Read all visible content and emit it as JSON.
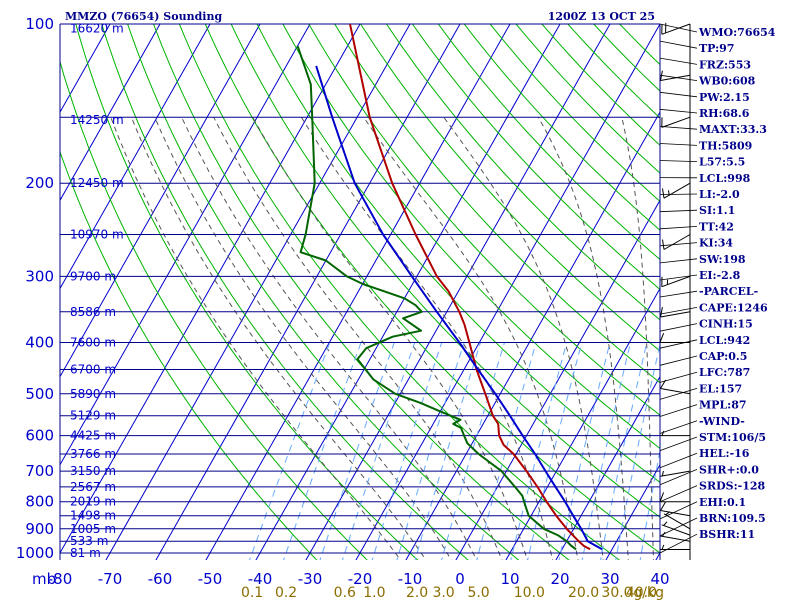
{
  "header": {
    "station": "MMZO (76654) Sounding",
    "time": "1200Z 13 OCT 25"
  },
  "chart_data": {
    "type": "line",
    "diagram": "skew-T log-P",
    "pressure_range_hpa": [
      1000,
      100
    ],
    "temperature_range_c": [
      -80,
      40
    ],
    "skew_c_per_decade": 60,
    "pressure_ticks": [
      "100",
      "200",
      "300",
      "400",
      "500",
      "600",
      "700",
      "800",
      "900",
      "1000"
    ],
    "pressure_unit": "mb",
    "temperature_ticks": [
      "-80",
      "-70",
      "-60",
      "-50",
      "-40",
      "-30",
      "-20",
      "-10",
      "0",
      "10",
      "20",
      "30",
      "40"
    ],
    "mixing_ratio_ticks": [
      "0.1",
      "0.2",
      "0.6",
      "1.0",
      "2.0",
      "3.0",
      "5.0",
      "10.0",
      "20.0",
      "30.0",
      "40.0"
    ],
    "mixing_ratio_unit": "g/kg",
    "height_labels": [
      {
        "p": 102,
        "label": "16620 m"
      },
      {
        "p": 152,
        "label": "14250 m"
      },
      {
        "p": 200,
        "label": "12450 m"
      },
      {
        "p": 250,
        "label": "10970 m"
      },
      {
        "p": 300,
        "label": "9700 m"
      },
      {
        "p": 350,
        "label": "8586 m"
      },
      {
        "p": 400,
        "label": "7600 m"
      },
      {
        "p": 450,
        "label": "6700 m"
      },
      {
        "p": 500,
        "label": "5890 m"
      },
      {
        "p": 550,
        "label": "5129 m"
      },
      {
        "p": 600,
        "label": "4425 m"
      },
      {
        "p": 650,
        "label": "3766 m"
      },
      {
        "p": 700,
        "label": "3150 m"
      },
      {
        "p": 750,
        "label": "2567 m"
      },
      {
        "p": 800,
        "label": "2019 m"
      },
      {
        "p": 850,
        "label": "1498 m"
      },
      {
        "p": 900,
        "label": "1005 m"
      },
      {
        "p": 950,
        "label": "533 m"
      },
      {
        "p": 1000,
        "label": "81 m"
      }
    ],
    "series": [
      {
        "color": "#b00000",
        "points": [
          [
            984,
            25.6
          ],
          [
            970,
            24.0
          ],
          [
            950,
            22.4
          ],
          [
            925,
            20.5
          ],
          [
            900,
            18.6
          ],
          [
            850,
            15.0
          ],
          [
            800,
            11.5
          ],
          [
            750,
            8.0
          ],
          [
            700,
            4.0
          ],
          [
            650,
            -0.5
          ],
          [
            625,
            -3.5
          ],
          [
            600,
            -5.5
          ],
          [
            570,
            -7.0
          ],
          [
            550,
            -9.0
          ],
          [
            500,
            -13.0
          ],
          [
            450,
            -17.5
          ],
          [
            400,
            -22.0
          ],
          [
            370,
            -25.0
          ],
          [
            350,
            -27.5
          ],
          [
            320,
            -32.0
          ],
          [
            300,
            -36.0
          ],
          [
            250,
            -45.0
          ],
          [
            200,
            -55.5
          ],
          [
            150,
            -67.5
          ],
          [
            100,
            -82.0
          ]
        ]
      },
      {
        "color": "#006400",
        "points": [
          [
            984,
            22.8
          ],
          [
            970,
            21.5
          ],
          [
            950,
            20.0
          ],
          [
            925,
            17.5
          ],
          [
            900,
            14.0
          ],
          [
            850,
            9.5
          ],
          [
            810,
            7.5
          ],
          [
            800,
            7.0
          ],
          [
            780,
            6.0
          ],
          [
            750,
            3.5
          ],
          [
            700,
            -1.0
          ],
          [
            650,
            -7.5
          ],
          [
            620,
            -11.0
          ],
          [
            600,
            -12.5
          ],
          [
            580,
            -14.0
          ],
          [
            570,
            -16.0
          ],
          [
            560,
            -15.0
          ],
          [
            540,
            -20.0
          ],
          [
            520,
            -25.0
          ],
          [
            500,
            -31.0
          ],
          [
            470,
            -37.0
          ],
          [
            430,
            -42.5
          ],
          [
            410,
            -42.0
          ],
          [
            390,
            -38.0
          ],
          [
            380,
            -33.0
          ],
          [
            360,
            -38.0
          ],
          [
            350,
            -35.0
          ],
          [
            340,
            -37.0
          ],
          [
            330,
            -40.0
          ],
          [
            310,
            -50.0
          ],
          [
            300,
            -54.0
          ],
          [
            280,
            -60.0
          ],
          [
            270,
            -66.0
          ],
          [
            250,
            -67.0
          ],
          [
            200,
            -71.0
          ],
          [
            150,
            -79.0
          ],
          [
            130,
            -83.0
          ],
          [
            110,
            -90.0
          ]
        ]
      },
      {
        "color": "#0000cd",
        "points": [
          [
            984,
            28.0
          ],
          [
            950,
            24.2
          ],
          [
            900,
            21.5
          ],
          [
            850,
            18.4
          ],
          [
            800,
            15.2
          ],
          [
            750,
            11.6
          ],
          [
            700,
            7.8
          ],
          [
            650,
            3.8
          ],
          [
            600,
            -0.8
          ],
          [
            550,
            -5.6
          ],
          [
            500,
            -11.0
          ],
          [
            450,
            -17.2
          ],
          [
            400,
            -24.0
          ],
          [
            350,
            -32.0
          ],
          [
            300,
            -41.0
          ],
          [
            250,
            -51.5
          ],
          [
            200,
            -63.0
          ],
          [
            150,
            -75.0
          ],
          [
            120,
            -84.0
          ]
        ]
      }
    ],
    "wind_barbs": [
      {
        "p": 985,
        "dir": 90,
        "spd": 5
      },
      {
        "p": 950,
        "dir": 100,
        "spd": 5
      },
      {
        "p": 925,
        "dir": 110,
        "spd": 5
      },
      {
        "p": 900,
        "dir": 120,
        "spd": 5
      },
      {
        "p": 850,
        "dir": 100,
        "spd": 10
      },
      {
        "p": 800,
        "dir": 90,
        "spd": 10
      },
      {
        "p": 700,
        "dir": 80,
        "spd": 5
      },
      {
        "p": 600,
        "dir": 90,
        "spd": 5
      },
      {
        "p": 500,
        "dir": 100,
        "spd": 10
      },
      {
        "p": 400,
        "dir": 90,
        "spd": 10
      },
      {
        "p": 350,
        "dir": 80,
        "spd": 10
      },
      {
        "p": 300,
        "dir": 70,
        "spd": 15
      },
      {
        "p": 250,
        "dir": 60,
        "spd": 10
      },
      {
        "p": 200,
        "dir": 60,
        "spd": 15
      },
      {
        "p": 150,
        "dir": 70,
        "spd": 10
      },
      {
        "p": 125,
        "dir": 80,
        "spd": 10
      },
      {
        "p": 100,
        "dir": 70,
        "spd": 20
      }
    ]
  },
  "indices": [
    "WMO:76654",
    "TP:97",
    "FRZ:553",
    "WB0:608",
    "PW:2.15",
    "RH:68.6",
    "MAXT:33.3",
    "TH:5809",
    "L57:5.5",
    "LCL:998",
    "LI:-2.0",
    "SI:1.1",
    "TT:42",
    "KI:34",
    "SW:198",
    "EI:-2.8",
    "-PARCEL-",
    "CAPE:1246",
    "CINH:15",
    "LCL:942",
    "CAP:0.5",
    "LFC:787",
    "EL:157",
    "MPL:87",
    "-WIND-",
    "STM:106/5",
    "HEL:-16",
    "SHR+:0.0",
    "SRDS:-128",
    "EHI:0.1",
    "BRN:109.5",
    "BSHR:11"
  ],
  "colors": {
    "isobar": "#00008b",
    "isotherm": "#0000cd",
    "dry_adiabat": "#00b400",
    "moist_adiabat": "#555555",
    "mixing_ratio": "#66aaff"
  }
}
